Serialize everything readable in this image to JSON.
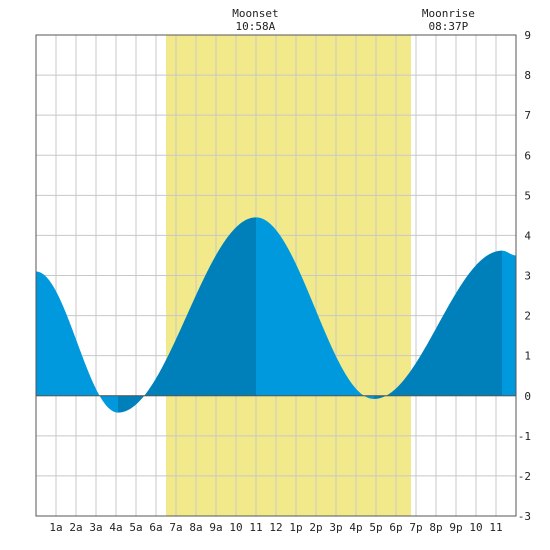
{
  "chart_data": {
    "type": "area",
    "title": "",
    "xlabel": "",
    "ylabel": "",
    "xlim": [
      0,
      24
    ],
    "ylim": [
      -3,
      9
    ],
    "grid": true,
    "x_ticks": [
      {
        "x": 1,
        "label": "1a"
      },
      {
        "x": 2,
        "label": "2a"
      },
      {
        "x": 3,
        "label": "3a"
      },
      {
        "x": 4,
        "label": "4a"
      },
      {
        "x": 5,
        "label": "5a"
      },
      {
        "x": 6,
        "label": "6a"
      },
      {
        "x": 7,
        "label": "7a"
      },
      {
        "x": 8,
        "label": "8a"
      },
      {
        "x": 9,
        "label": "9a"
      },
      {
        "x": 10,
        "label": "10"
      },
      {
        "x": 11,
        "label": "11"
      },
      {
        "x": 12,
        "label": "12"
      },
      {
        "x": 13,
        "label": "1p"
      },
      {
        "x": 14,
        "label": "2p"
      },
      {
        "x": 15,
        "label": "3p"
      },
      {
        "x": 16,
        "label": "4p"
      },
      {
        "x": 17,
        "label": "5p"
      },
      {
        "x": 18,
        "label": "6p"
      },
      {
        "x": 19,
        "label": "7p"
      },
      {
        "x": 20,
        "label": "8p"
      },
      {
        "x": 21,
        "label": "9p"
      },
      {
        "x": 22,
        "label": "10"
      },
      {
        "x": 23,
        "label": "11"
      }
    ],
    "y_ticks": [
      -3,
      -2,
      -1,
      0,
      1,
      2,
      3,
      4,
      5,
      6,
      7,
      8,
      9
    ],
    "daylight": {
      "start": 6.5,
      "end": 18.75
    },
    "tide_extremes": [
      {
        "x": 0.0,
        "y": 3.1
      },
      {
        "x": 4.1,
        "y": -0.42
      },
      {
        "x": 11.0,
        "y": 4.45
      },
      {
        "x": 16.9,
        "y": -0.08
      },
      {
        "x": 23.3,
        "y": 3.62
      },
      {
        "x": 24.0,
        "y": 3.5
      }
    ],
    "moon_events": [
      {
        "name": "Moonset",
        "time": "10:58A",
        "x": 10.97
      },
      {
        "name": "Moonrise",
        "time": "08:37P",
        "x": 20.62
      }
    ],
    "colors": {
      "tide_fill": "#0099dd",
      "tide_fill_dark": "#0080bb",
      "daylight": "#f2ea8a",
      "grid": "#c8c8c8",
      "axis": "#555555",
      "background": "#ffffff"
    }
  }
}
